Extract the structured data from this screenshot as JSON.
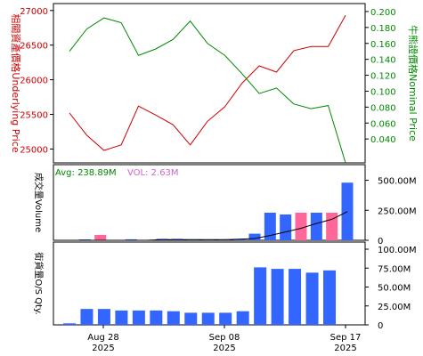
{
  "colors": {
    "underlying": "#cc0000",
    "nominal": "#008800",
    "bar_blue": "#3366ff",
    "bar_pink": "#ff6699",
    "avg_label": "#008800",
    "vol_label": "#cc66cc",
    "axis": "#000000",
    "grid": "#cccccc",
    "avg_line": "#000000"
  },
  "chart_data": [
    {
      "type": "line",
      "ylabel_left": "相關資產價格Underlying Price",
      "ylabel_right": "牛熊證價格Nominal Price",
      "ylim_left": [
        24800,
        27100
      ],
      "ylim_right": [
        0.01,
        0.21
      ],
      "yticks_left": [
        "27000",
        "26500",
        "26000",
        "25500",
        "25000"
      ],
      "yticks_right": [
        "0.200",
        "0.180",
        "0.160",
        "0.140",
        "0.120",
        "0.100",
        "0.080",
        "0.060",
        "0.040"
      ],
      "series": [
        {
          "name": "Underlying",
          "axis": "left",
          "values": [
            25520,
            25200,
            24980,
            25060,
            25620,
            25490,
            25350,
            25060,
            25400,
            25610,
            25950,
            26200,
            26110,
            26420,
            26480,
            26480,
            26930
          ]
        },
        {
          "name": "Nominal",
          "axis": "right",
          "values": [
            0.15,
            0.178,
            0.192,
            0.186,
            0.145,
            0.153,
            0.165,
            0.188,
            0.16,
            0.145,
            0.122,
            0.097,
            0.104,
            0.084,
            0.078,
            0.082,
            0.01
          ]
        }
      ]
    },
    {
      "type": "bar",
      "ylabel": "成交量Volume",
      "avg_label": "Avg: 238.89M",
      "vol_label": "VOL: 2.63M",
      "ylim": [
        0,
        630
      ],
      "yticks": [
        "500.00M",
        "250.00M",
        "0"
      ],
      "values": [
        0,
        2.63,
        45,
        0,
        8,
        0,
        12,
        12,
        8,
        5,
        4,
        8,
        55,
        230,
        215,
        230,
        230,
        230,
        480
      ],
      "bar_colors": [
        "blue",
        "blue",
        "pink",
        "blue",
        "blue",
        "blue",
        "blue",
        "blue",
        "blue",
        "blue",
        "blue",
        "blue",
        "blue",
        "blue",
        "blue",
        "pink",
        "blue",
        "pink",
        "blue"
      ],
      "average_line": [
        0,
        0,
        0,
        0,
        0,
        0,
        5,
        5,
        5,
        5,
        5,
        10,
        15,
        40,
        70,
        100,
        140,
        175,
        238.89
      ]
    },
    {
      "type": "bar",
      "ylabel": "街貨量O/S Qty.",
      "ylim": [
        0,
        100
      ],
      "yticks": [
        "100.00M",
        "75.00M",
        "50.00M",
        "25.00M",
        "0"
      ],
      "values": [
        2,
        21,
        21,
        19,
        19,
        19,
        18,
        16,
        16,
        16,
        18,
        76,
        74,
        74,
        69,
        72
      ],
      "bar_color": "blue"
    }
  ],
  "x_axis": {
    "ticks": [
      {
        "label": "Aug 28",
        "year": "2025"
      },
      {
        "label": "Sep 08",
        "year": "2025"
      },
      {
        "label": "Sep 17",
        "year": "2025"
      }
    ]
  }
}
